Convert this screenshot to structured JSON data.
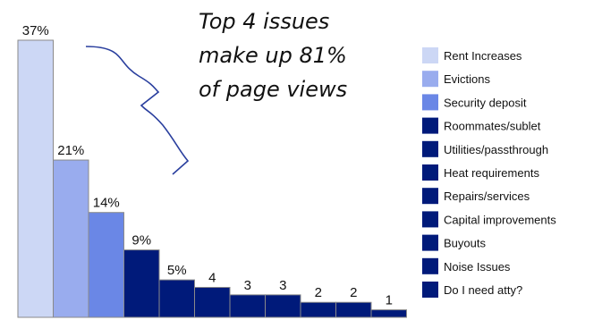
{
  "chart_data": {
    "type": "bar",
    "categories": [
      "Rent Increases",
      "Evictions",
      "Security deposit",
      "Roommates/sublet",
      "Utilities/passthrough",
      "Heat requirements",
      "Repairs/services",
      "Capital improvements",
      "Buyouts",
      "Noise Issues",
      "Do I need atty?"
    ],
    "values": [
      37,
      21,
      14,
      9,
      5,
      4,
      3,
      3,
      2,
      2,
      1
    ],
    "data_labels": [
      "37%",
      "21%",
      "14%",
      "9%",
      "5%",
      "4",
      "3",
      "3",
      "2",
      "2",
      "1"
    ],
    "colors": [
      "#ccd7f5",
      "#99acee",
      "#6a87e6",
      "#001a7a",
      "#001a7a",
      "#001a7a",
      "#001a7a",
      "#001a7a",
      "#001a7a",
      "#001a7a",
      "#001a7a"
    ],
    "legend_position": "right",
    "grid": false,
    "annotation": [
      "Top 4 issues",
      "make up 81%",
      "of page views"
    ]
  }
}
